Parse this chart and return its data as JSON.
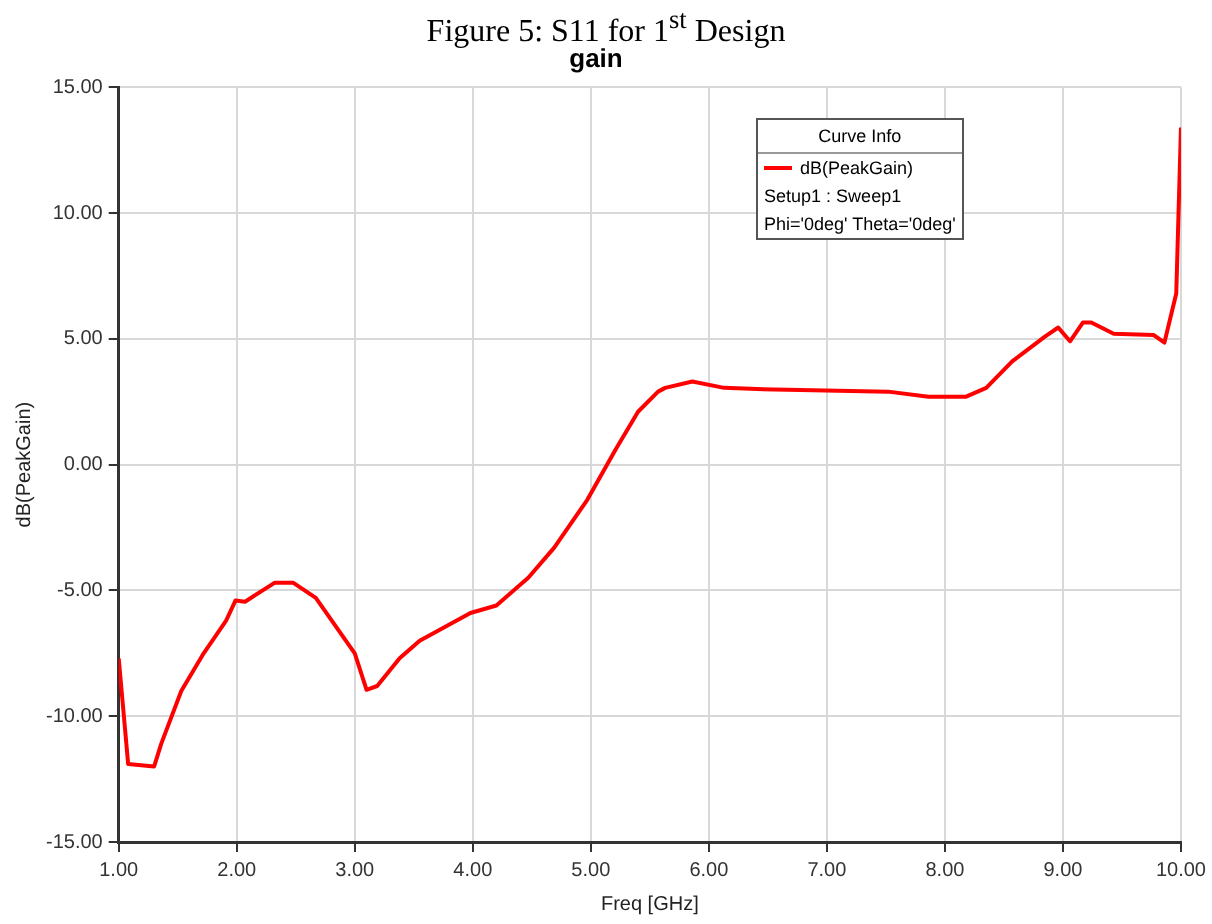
{
  "chart_data": {
    "type": "line",
    "title": "gain",
    "xlabel": "Freq [GHz]",
    "ylabel": "dB(PeakGain)",
    "legend_title": "Curve Info",
    "annotations": [
      "Figure 5: S11 for 1$^{st}$ Design",
      "Setup1 : Sweep1",
      "Phi='0deg' Theta='0deg'"
    ],
    "series": [
      {
        "name": "dB(PeakGain)",
        "color": "#ff0000",
        "x": [
          1.0,
          1.08,
          1.3,
          1.36,
          1.53,
          1.72,
          1.91,
          1.99,
          2.07,
          2.32,
          2.48,
          2.67,
          3.0,
          3.1,
          3.19,
          3.38,
          3.55,
          3.98,
          4.2,
          4.47,
          4.69,
          4.97,
          5.21,
          5.4,
          5.57,
          5.63,
          5.86,
          6.13,
          6.41,
          7.52,
          7.86,
          8.18,
          8.35,
          8.57,
          8.85,
          8.96,
          9.06,
          9.17,
          9.24,
          9.43,
          9.77,
          9.86,
          9.96,
          10.0
        ],
        "values": [
          -7.7,
          -11.9,
          -12.0,
          -11.1,
          -9.0,
          -7.5,
          -6.2,
          -5.4,
          -5.45,
          -4.7,
          -4.7,
          -5.3,
          -7.5,
          -8.95,
          -8.8,
          -7.7,
          -7.0,
          -5.9,
          -5.6,
          -4.5,
          -3.3,
          -1.4,
          0.6,
          2.1,
          2.9,
          3.05,
          3.3,
          3.05,
          3.0,
          2.9,
          2.7,
          2.7,
          3.05,
          4.1,
          5.1,
          5.45,
          4.9,
          5.65,
          5.65,
          5.2,
          5.15,
          4.85,
          6.8,
          13.4
        ]
      }
    ],
    "xlim": [
      1,
      10
    ],
    "xticks": [
      {
        "value": 1,
        "label": "1.00"
      },
      {
        "value": 2,
        "label": "2.00"
      },
      {
        "value": 3,
        "label": "3.00"
      },
      {
        "value": 4,
        "label": "4.00"
      },
      {
        "value": 5,
        "label": "5.00"
      },
      {
        "value": 6,
        "label": "6.00"
      },
      {
        "value": 7,
        "label": "7.00"
      },
      {
        "value": 8,
        "label": "8.00"
      },
      {
        "value": 9,
        "label": "9.00"
      },
      {
        "value": 10,
        "label": "10.00"
      }
    ],
    "ylim": [
      -15,
      15
    ],
    "yticks": [
      {
        "value": -15,
        "label": "-15.00"
      },
      {
        "value": -10,
        "label": "-10.00"
      },
      {
        "value": -5,
        "label": "-5.00"
      },
      {
        "value": 0,
        "label": "0.00"
      },
      {
        "value": 5,
        "label": "5.00"
      },
      {
        "value": 10,
        "label": "10.00"
      },
      {
        "value": 15,
        "label": "15.00"
      }
    ],
    "grid": true,
    "legend": "top right",
    "marker": "none",
    "line_style": "solid"
  }
}
